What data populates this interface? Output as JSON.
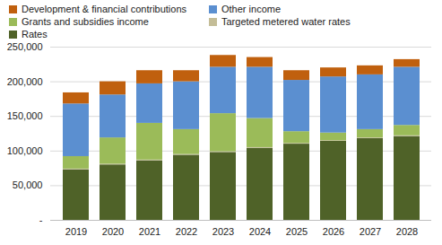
{
  "chart_data": {
    "type": "bar",
    "stacked": true,
    "grid": true,
    "legend": "top",
    "categories": [
      "2019",
      "2020",
      "2021",
      "2022",
      "2023",
      "2024",
      "2025",
      "2026",
      "2027",
      "2028"
    ],
    "series": [
      {
        "name": "Rates",
        "color": "#4f6228",
        "values": [
          73000,
          80000,
          86000,
          94000,
          98000,
          104000,
          110000,
          114000,
          118000,
          121000
        ]
      },
      {
        "name": "Targeted metered water rates",
        "color": "#c4bd97",
        "values": [
          1000,
          1000,
          1000,
          1000,
          1000,
          1000,
          1000,
          1000,
          1000,
          1000
        ]
      },
      {
        "name": "Grants and subsidies income",
        "color": "#9bbb59",
        "values": [
          18000,
          38000,
          53000,
          36000,
          55000,
          42000,
          17000,
          11000,
          12000,
          15000
        ]
      },
      {
        "name": "Other income",
        "color": "#5b8fd0",
        "values": [
          76000,
          62000,
          57000,
          69000,
          67000,
          74000,
          74000,
          81000,
          79000,
          84000
        ]
      },
      {
        "name": "Development & financial contributions",
        "color": "#c0600e",
        "values": [
          16000,
          19000,
          19000,
          16000,
          17000,
          14000,
          14000,
          13000,
          13000,
          11000
        ]
      }
    ],
    "ylim": [
      0,
      250000
    ],
    "yticks": [
      {
        "value": 0,
        "label": "-"
      },
      {
        "value": 50000,
        "label": "50,000"
      },
      {
        "value": 100000,
        "label": "100,000"
      },
      {
        "value": 150000,
        "label": "150,000"
      },
      {
        "value": 200000,
        "label": "200,000"
      },
      {
        "value": 250000,
        "label": "250,000"
      }
    ]
  }
}
